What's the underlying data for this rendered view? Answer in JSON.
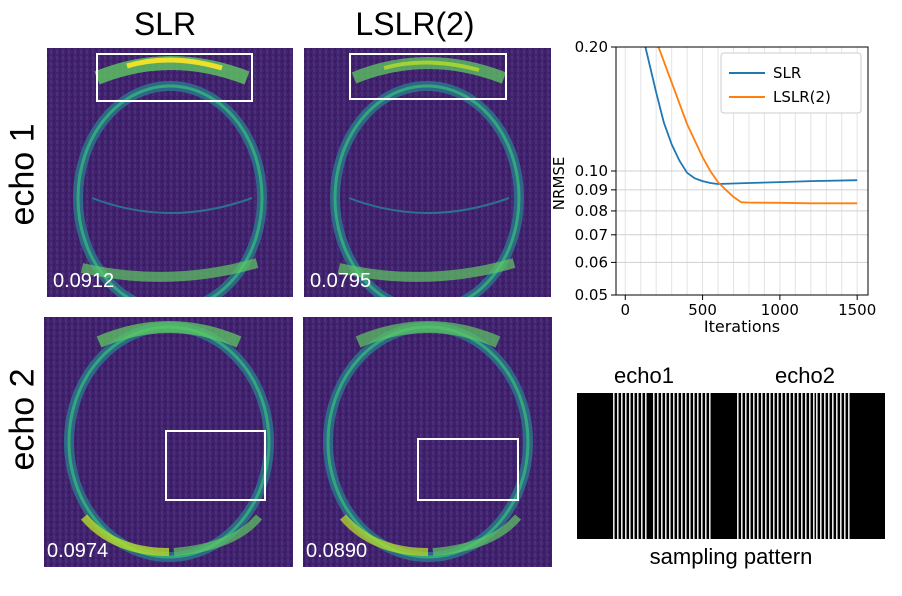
{
  "columns": {
    "col1": "SLR",
    "col2": "LSLR(2)"
  },
  "rows": {
    "row1": "echo 1",
    "row2": "echo 2"
  },
  "scores": {
    "e1_slr": "0.0912",
    "e1_lslr": "0.0795",
    "e2_slr": "0.0974",
    "e2_lslr": "0.0890"
  },
  "chart_data": {
    "type": "line",
    "title": "",
    "xlabel": "Iterations",
    "ylabel": "NRMSE",
    "xlim": [
      -60,
      1570
    ],
    "ylim": [
      0.05,
      0.2
    ],
    "yscale": "log",
    "xticks": [
      0,
      500,
      1000,
      1500
    ],
    "xtick_labels": [
      "0",
      "500",
      "1000",
      "1500"
    ],
    "yticks": [
      0.05,
      0.06,
      0.07,
      0.08,
      0.09,
      0.1,
      0.2
    ],
    "ytick_labels": [
      "0.05",
      "0.06",
      "0.07",
      "0.08",
      "0.09",
      "0.10",
      "0.20"
    ],
    "grid": true,
    "legend_position": "top-right",
    "series": [
      {
        "name": "SLR",
        "color": "#1f77b4",
        "x": [
          130,
          200,
          250,
          300,
          350,
          400,
          450,
          500,
          550,
          600,
          800,
          1000,
          1200,
          1500
        ],
        "y": [
          0.2,
          0.155,
          0.131,
          0.116,
          0.106,
          0.099,
          0.096,
          0.0945,
          0.0935,
          0.093,
          0.0935,
          0.094,
          0.0945,
          0.095
        ]
      },
      {
        "name": "LSLR(2)",
        "color": "#ff7f0e",
        "x": [
          215,
          300,
          400,
          500,
          550,
          600,
          650,
          700,
          750,
          800,
          1000,
          1200,
          1500
        ],
        "y": [
          0.2,
          0.164,
          0.13,
          0.108,
          0.1,
          0.094,
          0.09,
          0.0865,
          0.084,
          0.0838,
          0.0837,
          0.0835,
          0.0835
        ]
      }
    ]
  },
  "sampling": {
    "echo1_label": "echo1",
    "echo2_label": "echo2",
    "caption": "sampling pattern"
  }
}
